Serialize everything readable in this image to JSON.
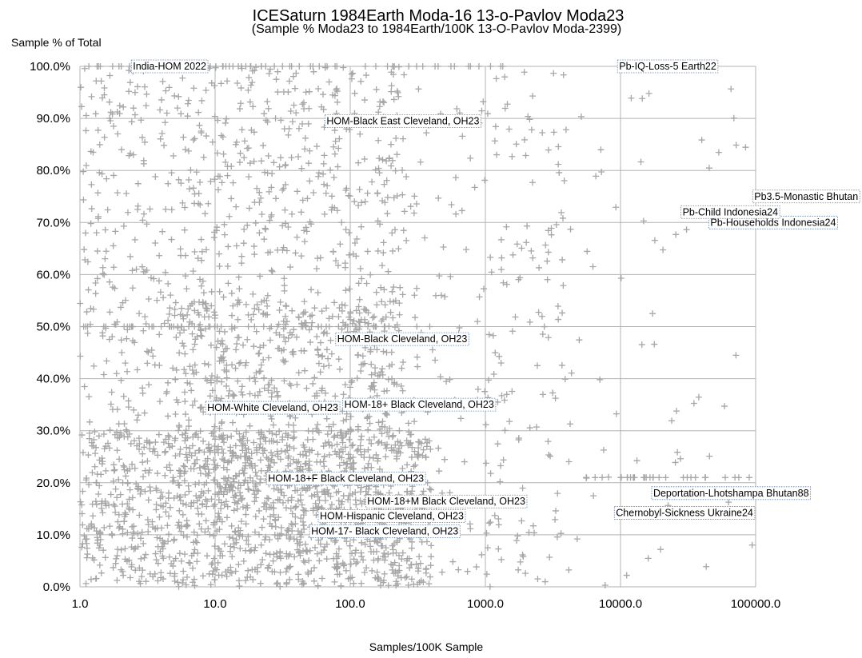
{
  "chart_data": {
    "type": "scatter",
    "title": "ICESaturn 1984Earth Moda-16 13-o-Pavlov Moda23",
    "subtitle": "(Sample % Moda23 to 1984Earth/100K 13-O-Pavlov Moda-2399)",
    "xlabel": "Samples/100K Sample",
    "ylabel": "Sample % of Total",
    "x_scale": "log",
    "xlim": [
      1,
      100000
    ],
    "ylim": [
      0,
      100
    ],
    "x_ticks": [
      {
        "value": 1,
        "label": "1.0"
      },
      {
        "value": 10,
        "label": "10.0"
      },
      {
        "value": 100,
        "label": "100.0"
      },
      {
        "value": 1000,
        "label": "1000.0"
      },
      {
        "value": 10000,
        "label": "10000.0"
      },
      {
        "value": 100000,
        "label": "100000.0"
      }
    ],
    "y_ticks": [
      {
        "value": 0,
        "label": "0.0%"
      },
      {
        "value": 10,
        "label": "10.0%"
      },
      {
        "value": 20,
        "label": "20.0%"
      },
      {
        "value": 30,
        "label": "30.0%"
      },
      {
        "value": 40,
        "label": "40.0%"
      },
      {
        "value": 50,
        "label": "50.0%"
      },
      {
        "value": 60,
        "label": "60.0%"
      },
      {
        "value": 70,
        "label": "70.0%"
      },
      {
        "value": 80,
        "label": "80.0%"
      },
      {
        "value": 90,
        "label": "90.0%"
      },
      {
        "value": 100,
        "label": "100.0%"
      }
    ],
    "grid": true,
    "marker": "+",
    "marker_color": "#a6a6a6",
    "annotations": [
      {
        "label": "India-HOM 2022",
        "x": 2.4,
        "y": 100
      },
      {
        "label": "Pb-IQ-Loss-5 Earth22",
        "x": 9500,
        "y": 100
      },
      {
        "label": "HOM-Black East Cleveland, OH23",
        "x": 65,
        "y": 89.5
      },
      {
        "label": "Pb3.5-Monastic Bhutan",
        "x": 95000,
        "y": 75
      },
      {
        "label": "Pb-Households Indonesia24",
        "x": 45000,
        "y": 70
      },
      {
        "label": "Pb-Child Indonesia24",
        "x": 28000,
        "y": 72
      },
      {
        "label": "HOM-Black Cleveland, OH23",
        "x": 78,
        "y": 47.6
      },
      {
        "label": "HOM-18+ Black Cleveland, OH23",
        "x": 88,
        "y": 35
      },
      {
        "label": "HOM-White Cleveland, OH23",
        "x": 8.5,
        "y": 34.4
      },
      {
        "label": "HOM-18+F Black Cleveland, OH23",
        "x": 24,
        "y": 20.8
      },
      {
        "label": "HOM-18+M Black Cleveland, OH23",
        "x": 130,
        "y": 16.4
      },
      {
        "label": "Deportation-Lhotshampa Bhutan88",
        "x": 17000,
        "y": 18
      },
      {
        "label": "HOM-Hispanic Cleveland, OH23",
        "x": 58,
        "y": 13.6
      },
      {
        "label": "Chernobyl-Sickness Ukraine24",
        "x": 9000,
        "y": 14.2
      },
      {
        "label": "HOM-17- Black Cleveland, OH23",
        "x": 50,
        "y": 10.7
      }
    ]
  }
}
